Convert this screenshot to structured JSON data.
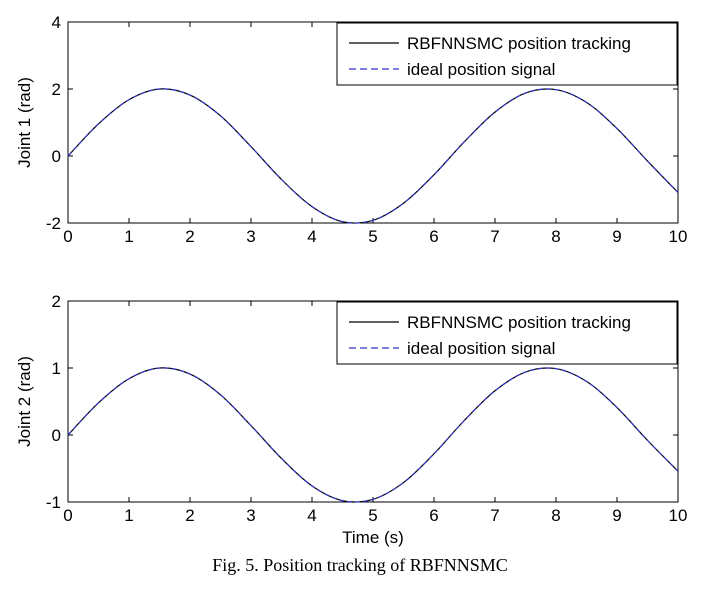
{
  "caption": "Fig. 5.  Position tracking of RBFNNSMC",
  "chart_data": [
    {
      "type": "line",
      "title": "",
      "xlabel": "",
      "ylabel": "Joint 1 (rad)",
      "xlim": [
        0,
        10
      ],
      "ylim": [
        -2,
        4
      ],
      "xticks": [
        0,
        1,
        2,
        3,
        4,
        5,
        6,
        7,
        8,
        9,
        10
      ],
      "yticks": [
        -2,
        0,
        2,
        4
      ],
      "grid": false,
      "legend": "top-right",
      "x": [
        0,
        0.5,
        1,
        1.5,
        2,
        2.5,
        3,
        3.5,
        4,
        4.5,
        5,
        5.5,
        6,
        6.5,
        7,
        7.5,
        8,
        8.5,
        9,
        9.5,
        10
      ],
      "series": [
        {
          "name": "RBFNNSMC position tracking",
          "style": "solid",
          "color": "#000000",
          "values": [
            0,
            0.96,
            1.68,
            2.0,
            1.82,
            1.2,
            0.28,
            -0.7,
            -1.51,
            -1.96,
            -1.92,
            -1.41,
            -0.56,
            0.43,
            1.31,
            1.88,
            1.98,
            1.6,
            0.82,
            -0.15,
            -1.09
          ]
        },
        {
          "name": "ideal position signal",
          "style": "dashed",
          "color": "#3333cc",
          "values": [
            0,
            0.96,
            1.68,
            2.0,
            1.82,
            1.2,
            0.28,
            -0.7,
            -1.51,
            -1.96,
            -1.92,
            -1.41,
            -0.56,
            0.43,
            1.31,
            1.88,
            1.98,
            1.6,
            0.82,
            -0.15,
            -1.09
          ]
        }
      ]
    },
    {
      "type": "line",
      "title": "",
      "xlabel": "Time (s)",
      "ylabel": "Joint 2 (rad)",
      "xlim": [
        0,
        10
      ],
      "ylim": [
        -1,
        2
      ],
      "xticks": [
        0,
        1,
        2,
        3,
        4,
        5,
        6,
        7,
        8,
        9,
        10
      ],
      "yticks": [
        -1,
        0,
        1,
        2
      ],
      "grid": false,
      "legend": "top-right",
      "x": [
        0,
        0.5,
        1,
        1.5,
        2,
        2.5,
        3,
        3.5,
        4,
        4.5,
        5,
        5.5,
        6,
        6.5,
        7,
        7.5,
        8,
        8.5,
        9,
        9.5,
        10
      ],
      "series": [
        {
          "name": "RBFNNSMC position tracking",
          "style": "solid",
          "color": "#000000",
          "values": [
            0,
            0.48,
            0.84,
            1.0,
            0.91,
            0.6,
            0.14,
            -0.35,
            -0.76,
            -0.98,
            -0.96,
            -0.71,
            -0.28,
            0.22,
            0.66,
            0.94,
            0.99,
            0.8,
            0.41,
            -0.08,
            -0.54
          ]
        },
        {
          "name": "ideal position signal",
          "style": "dashed",
          "color": "#3333cc",
          "values": [
            0,
            0.48,
            0.84,
            1.0,
            0.91,
            0.6,
            0.14,
            -0.35,
            -0.76,
            -0.98,
            -0.96,
            -0.71,
            -0.28,
            0.22,
            0.66,
            0.94,
            0.99,
            0.8,
            0.41,
            -0.08,
            -0.54
          ]
        }
      ]
    }
  ]
}
